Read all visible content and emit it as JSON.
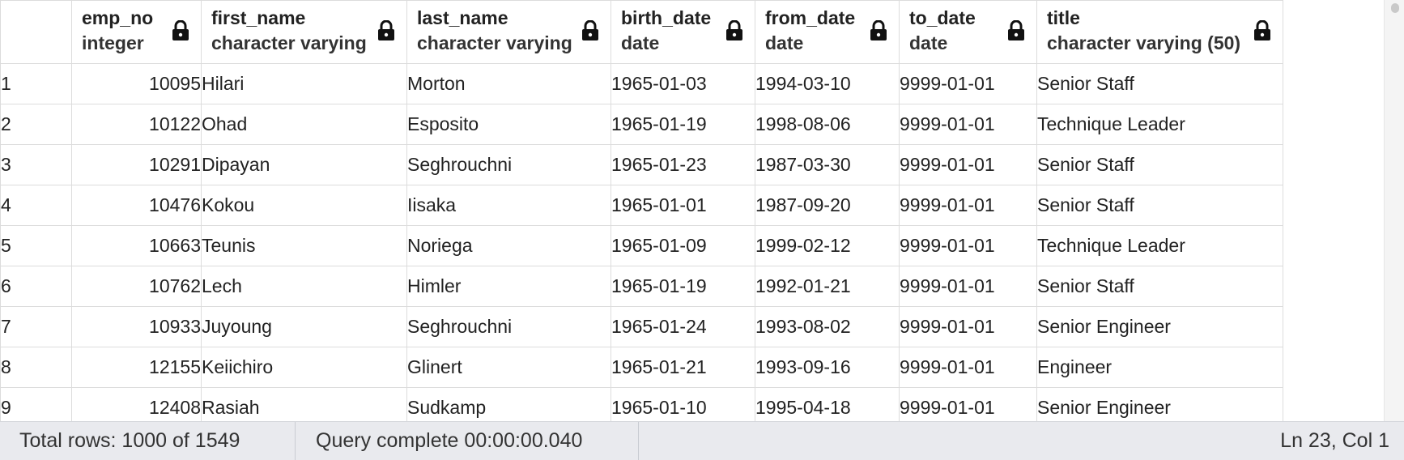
{
  "columns": [
    {
      "name": "emp_no",
      "type": "integer"
    },
    {
      "name": "first_name",
      "type": "character varying"
    },
    {
      "name": "last_name",
      "type": "character varying"
    },
    {
      "name": "birth_date",
      "type": "date"
    },
    {
      "name": "from_date",
      "type": "date"
    },
    {
      "name": "to_date",
      "type": "date"
    },
    {
      "name": "title",
      "type": "character varying (50)"
    }
  ],
  "rows": [
    {
      "n": "1",
      "cells": [
        "10095",
        "Hilari",
        "Morton",
        "1965-01-03",
        "1994-03-10",
        "9999-01-01",
        "Senior Staff"
      ]
    },
    {
      "n": "2",
      "cells": [
        "10122",
        "Ohad",
        "Esposito",
        "1965-01-19",
        "1998-08-06",
        "9999-01-01",
        "Technique Leader"
      ]
    },
    {
      "n": "3",
      "cells": [
        "10291",
        "Dipayan",
        "Seghrouchni",
        "1965-01-23",
        "1987-03-30",
        "9999-01-01",
        "Senior Staff"
      ]
    },
    {
      "n": "4",
      "cells": [
        "10476",
        "Kokou",
        "Iisaka",
        "1965-01-01",
        "1987-09-20",
        "9999-01-01",
        "Senior Staff"
      ]
    },
    {
      "n": "5",
      "cells": [
        "10663",
        "Teunis",
        "Noriega",
        "1965-01-09",
        "1999-02-12",
        "9999-01-01",
        "Technique Leader"
      ]
    },
    {
      "n": "6",
      "cells": [
        "10762",
        "Lech",
        "Himler",
        "1965-01-19",
        "1992-01-21",
        "9999-01-01",
        "Senior Staff"
      ]
    },
    {
      "n": "7",
      "cells": [
        "10933",
        "Juyoung",
        "Seghrouchni",
        "1965-01-24",
        "1993-08-02",
        "9999-01-01",
        "Senior Engineer"
      ]
    },
    {
      "n": "8",
      "cells": [
        "12155",
        "Keiichiro",
        "Glinert",
        "1965-01-21",
        "1993-09-16",
        "9999-01-01",
        "Engineer"
      ]
    },
    {
      "n": "9",
      "cells": [
        "12408",
        "Rasiah",
        "Sudkamp",
        "1965-01-10",
        "1995-04-18",
        "9999-01-01",
        "Senior Engineer"
      ]
    }
  ],
  "status": {
    "total_rows": "Total rows: 1000 of 1549",
    "query": "Query complete 00:00:00.040",
    "cursor": "Ln 23, Col 1"
  },
  "icons": {
    "lock": "lock-icon"
  },
  "colors": {
    "statusbar_bg": "#e9eaee",
    "grid_border": "#dcdcdc"
  }
}
